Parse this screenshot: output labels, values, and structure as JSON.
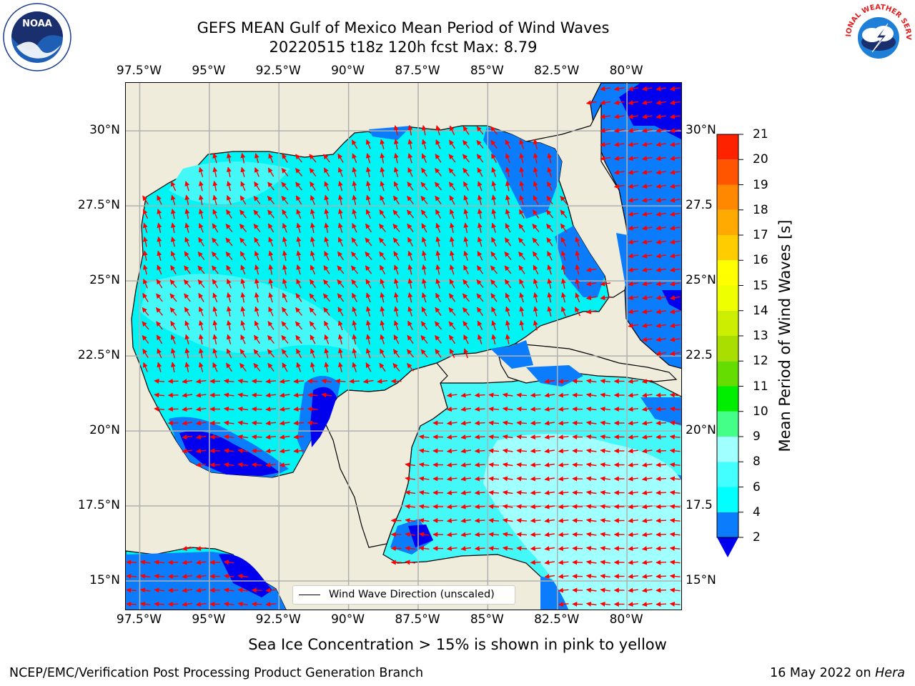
{
  "title": {
    "line1": "GEFS MEAN Gulf of Mexico Mean Period of Wind Waves",
    "line2": "20220515 t18z 120h fcst   Max: 8.79"
  },
  "logos": {
    "left": "NOAA",
    "right": "NATIONAL WEATHER SERVICE"
  },
  "map": {
    "lon_labels": [
      "97.5°W",
      "95°W",
      "92.5°W",
      "90°W",
      "87.5°W",
      "85°W",
      "82.5°W",
      "80°W"
    ],
    "lat_labels_left": [
      "30°N",
      "27.5°N",
      "25°N",
      "22.5°N",
      "20°N",
      "17.5°N",
      "15°N"
    ],
    "lat_labels_right": [
      "30°N",
      "27.5",
      "25°N",
      "22.5",
      "20°N",
      "17.5",
      "15°N"
    ],
    "lon_values": [
      -97.5,
      -95,
      -92.5,
      -90,
      -87.5,
      -85,
      -82.5,
      -80
    ],
    "lat_values": [
      30,
      27.5,
      25,
      22.5,
      20,
      17.5,
      15
    ],
    "lon_range": [
      -98,
      -78
    ],
    "lat_range": [
      14,
      31.6
    ],
    "legend_label": "Wind Wave Direction (unscaled)",
    "colors": {
      "land": "#efecdc",
      "grid": "#b0b0b0",
      "arrow": "#ff0000",
      "coast": "#000000"
    }
  },
  "colorbar": {
    "label": "Mean Period of Wind Waves [s]",
    "ticks": [
      "2",
      "4",
      "6",
      "8",
      "9",
      "10",
      "11",
      "12",
      "13",
      "14",
      "15",
      "16",
      "17",
      "18",
      "19",
      "20",
      "21"
    ],
    "levels": [
      {
        "from": 2,
        "to": 4,
        "color": "#0a7cfc"
      },
      {
        "from": 4,
        "to": 6,
        "color": "#00ffff"
      },
      {
        "from": 6,
        "to": 8,
        "color": "#44ffff"
      },
      {
        "from": 8,
        "to": 9,
        "color": "#a0ffff"
      },
      {
        "from": 9,
        "to": 10,
        "color": "#44ff88"
      },
      {
        "from": 10,
        "to": 11,
        "color": "#00ee00"
      },
      {
        "from": 11,
        "to": 12,
        "color": "#66dd00"
      },
      {
        "from": 12,
        "to": 13,
        "color": "#aadd00"
      },
      {
        "from": 13,
        "to": 14,
        "color": "#ccee00"
      },
      {
        "from": 14,
        "to": 15,
        "color": "#eeff00"
      },
      {
        "from": 15,
        "to": 16,
        "color": "#ffff00"
      },
      {
        "from": 16,
        "to": 17,
        "color": "#ffcc00"
      },
      {
        "from": 17,
        "to": 18,
        "color": "#ffaa00"
      },
      {
        "from": 18,
        "to": 19,
        "color": "#ff8800"
      },
      {
        "from": 19,
        "to": 20,
        "color": "#ff5500"
      },
      {
        "from": 20,
        "to": 21,
        "color": "#ff2200"
      }
    ],
    "under_color": "#0000ee",
    "top_color": "#ff0000"
  },
  "footer": {
    "note": "Sea Ice Concentration > 15% is shown in pink to yellow",
    "left": "NCEP/EMC/Verification Post Processing Product Generation Branch",
    "right_prefix": "16 May 2022 on ",
    "right_host": "Hera"
  }
}
